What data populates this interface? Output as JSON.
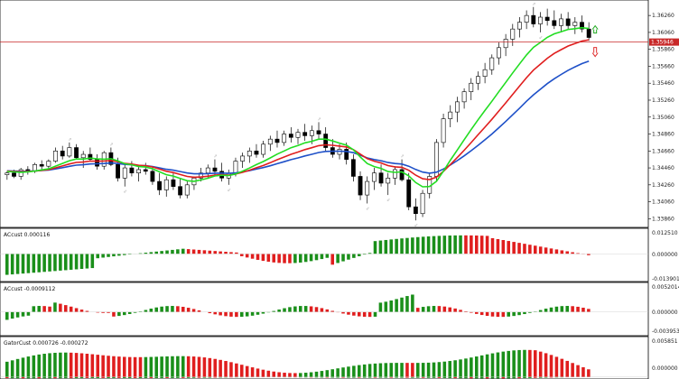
{
  "colors": {
    "bull_candle": "#000000",
    "bear_candle": "#000000",
    "jaw": "#1e50c8",
    "teeth": "#e01e1e",
    "lips": "#22dd22",
    "hist_up": "#1a8f1a",
    "hist_down": "#e01e1e",
    "price_line": "#c82828",
    "price_badge": "#c82828",
    "fractal": "#b0b0b0",
    "arrow_up": "#22aa22",
    "arrow_down": "#e03030"
  },
  "price_panel": {
    "ymin": 1.338,
    "ymax": 1.364,
    "tick_labels": [
      "1.36260",
      "1.36060",
      "1.35860",
      "1.35660",
      "1.35460",
      "1.35260",
      "1.35060",
      "1.34860",
      "1.34660",
      "1.34460",
      "1.34260",
      "1.34060",
      "1.33860"
    ],
    "tick_values": [
      1.3626,
      1.3606,
      1.3586,
      1.3566,
      1.3546,
      1.3526,
      1.3506,
      1.3486,
      1.3466,
      1.3446,
      1.3426,
      1.3406,
      1.3386
    ],
    "current_price_label": "1.35946",
    "current_price": 1.35946
  },
  "panels": [
    {
      "title": "ACcust 0.000116",
      "labels": [
        "0.012510",
        "0.000000",
        "-0.013901"
      ],
      "values": [
        0.01251,
        0.0,
        -0.013901
      ]
    },
    {
      "title": "ACcust -0.0009112",
      "labels": [
        "0.0052014",
        "0.000000",
        "-0.0039536"
      ],
      "values": [
        0.0052014,
        0.0,
        -0.0039536
      ]
    },
    {
      "title": "GatorCust 0.000726 -0.000272",
      "labels": [
        "0.005851",
        "0.000000"
      ],
      "values": [
        0.005851,
        0.0
      ]
    }
  ],
  "chart_data": [
    {
      "type": "candlestick",
      "note": "approximate OHLC read from the chart",
      "series": [
        {
          "name": "price",
          "ohlc": [
            [
              1.3438,
              1.3442,
              1.3432,
              1.344
            ],
            [
              1.344,
              1.3444,
              1.3434,
              1.3436
            ],
            [
              1.3436,
              1.3446,
              1.3432,
              1.3444
            ],
            [
              1.3444,
              1.3448,
              1.3438,
              1.3442
            ],
            [
              1.3442,
              1.3452,
              1.344,
              1.345
            ],
            [
              1.345,
              1.3455,
              1.3444,
              1.3448
            ],
            [
              1.3448,
              1.3456,
              1.3444,
              1.3454
            ],
            [
              1.3454,
              1.347,
              1.3452,
              1.3466
            ],
            [
              1.3466,
              1.3472,
              1.3456,
              1.346
            ],
            [
              1.346,
              1.3476,
              1.3458,
              1.347
            ],
            [
              1.347,
              1.3474,
              1.3456,
              1.3458
            ],
            [
              1.3458,
              1.3466,
              1.3446,
              1.3462
            ],
            [
              1.3462,
              1.347,
              1.3454,
              1.3456
            ],
            [
              1.3456,
              1.3462,
              1.3444,
              1.3448
            ],
            [
              1.3448,
              1.3466,
              1.3444,
              1.3464
            ],
            [
              1.3464,
              1.347,
              1.3448,
              1.345
            ],
            [
              1.345,
              1.3458,
              1.343,
              1.3434
            ],
            [
              1.3434,
              1.345,
              1.3424,
              1.3446
            ],
            [
              1.3446,
              1.3454,
              1.3436,
              1.344
            ],
            [
              1.344,
              1.3448,
              1.343,
              1.3444
            ],
            [
              1.3444,
              1.3452,
              1.3438,
              1.3442
            ],
            [
              1.3442,
              1.3448,
              1.3426,
              1.343
            ],
            [
              1.343,
              1.344,
              1.3414,
              1.342
            ],
            [
              1.342,
              1.3436,
              1.3412,
              1.3432
            ],
            [
              1.3432,
              1.344,
              1.342,
              1.3424
            ],
            [
              1.3424,
              1.3434,
              1.341,
              1.3414
            ],
            [
              1.3414,
              1.343,
              1.341,
              1.3426
            ],
            [
              1.3426,
              1.3436,
              1.342,
              1.3434
            ],
            [
              1.3434,
              1.3446,
              1.343,
              1.344
            ],
            [
              1.344,
              1.345,
              1.3434,
              1.3446
            ],
            [
              1.3446,
              1.3456,
              1.3438,
              1.3442
            ],
            [
              1.3442,
              1.3452,
              1.343,
              1.3434
            ],
            [
              1.3434,
              1.3444,
              1.3426,
              1.344
            ],
            [
              1.344,
              1.3458,
              1.3436,
              1.3454
            ],
            [
              1.3454,
              1.3464,
              1.3446,
              1.346
            ],
            [
              1.346,
              1.347,
              1.3452,
              1.3466
            ],
            [
              1.3466,
              1.3474,
              1.3458,
              1.3462
            ],
            [
              1.3462,
              1.3478,
              1.3458,
              1.3474
            ],
            [
              1.3474,
              1.3484,
              1.3466,
              1.348
            ],
            [
              1.348,
              1.349,
              1.347,
              1.3476
            ],
            [
              1.3476,
              1.349,
              1.3472,
              1.3486
            ],
            [
              1.3486,
              1.3494,
              1.3476,
              1.3482
            ],
            [
              1.3482,
              1.3492,
              1.3474,
              1.3488
            ],
            [
              1.3488,
              1.3498,
              1.3478,
              1.3484
            ],
            [
              1.3484,
              1.3496,
              1.3474,
              1.349
            ],
            [
              1.349,
              1.35,
              1.348,
              1.3486
            ],
            [
              1.3486,
              1.3494,
              1.3466,
              1.347
            ],
            [
              1.347,
              1.348,
              1.3458,
              1.3462
            ],
            [
              1.3462,
              1.3474,
              1.3456,
              1.3468
            ],
            [
              1.3468,
              1.3476,
              1.345,
              1.3456
            ],
            [
              1.3456,
              1.3462,
              1.343,
              1.3436
            ],
            [
              1.3436,
              1.3442,
              1.3408,
              1.3414
            ],
            [
              1.3414,
              1.3436,
              1.3404,
              1.343
            ],
            [
              1.343,
              1.3446,
              1.342,
              1.344
            ],
            [
              1.344,
              1.345,
              1.3424,
              1.3428
            ],
            [
              1.3428,
              1.344,
              1.3414,
              1.3434
            ],
            [
              1.3434,
              1.3448,
              1.3426,
              1.3444
            ],
            [
              1.3444,
              1.3456,
              1.343,
              1.3432
            ],
            [
              1.3432,
              1.344,
              1.3396,
              1.34
            ],
            [
              1.34,
              1.341,
              1.3384,
              1.3392
            ],
            [
              1.3392,
              1.342,
              1.3388,
              1.3416
            ],
            [
              1.3416,
              1.344,
              1.341,
              1.3436
            ],
            [
              1.3436,
              1.348,
              1.343,
              1.3476
            ],
            [
              1.3476,
              1.351,
              1.347,
              1.3504
            ],
            [
              1.3504,
              1.352,
              1.3494,
              1.3512
            ],
            [
              1.3512,
              1.353,
              1.35,
              1.3524
            ],
            [
              1.3524,
              1.354,
              1.3516,
              1.3536
            ],
            [
              1.3536,
              1.3552,
              1.3526,
              1.3546
            ],
            [
              1.3546,
              1.356,
              1.3538,
              1.3554
            ],
            [
              1.3554,
              1.357,
              1.3546,
              1.3562
            ],
            [
              1.3562,
              1.358,
              1.3556,
              1.3576
            ],
            [
              1.3576,
              1.3594,
              1.3568,
              1.3588
            ],
            [
              1.3588,
              1.3604,
              1.3578,
              1.3598
            ],
            [
              1.3598,
              1.3616,
              1.359,
              1.361
            ],
            [
              1.361,
              1.3624,
              1.36,
              1.3618
            ],
            [
              1.3618,
              1.3632,
              1.361,
              1.3626
            ],
            [
              1.3626,
              1.3636,
              1.3612,
              1.3616
            ],
            [
              1.3616,
              1.363,
              1.3606,
              1.3624
            ],
            [
              1.3624,
              1.3634,
              1.3614,
              1.362
            ],
            [
              1.362,
              1.3632,
              1.361,
              1.3614
            ],
            [
              1.3614,
              1.3628,
              1.3606,
              1.3622
            ],
            [
              1.3622,
              1.363,
              1.361,
              1.3614
            ],
            [
              1.3614,
              1.3624,
              1.3604,
              1.3618
            ],
            [
              1.3618,
              1.3626,
              1.3606,
              1.361
            ],
            [
              1.361,
              1.3618,
              1.3596,
              1.36
            ]
          ]
        }
      ]
    },
    {
      "type": "bar",
      "name": "ACcust",
      "note": "approximate histogram, red=down green=up"
    },
    {
      "type": "bar",
      "name": "ACcust",
      "note": "approximate histogram"
    },
    {
      "type": "bar",
      "name": "GatorCust",
      "note": "approximate histogram"
    }
  ]
}
